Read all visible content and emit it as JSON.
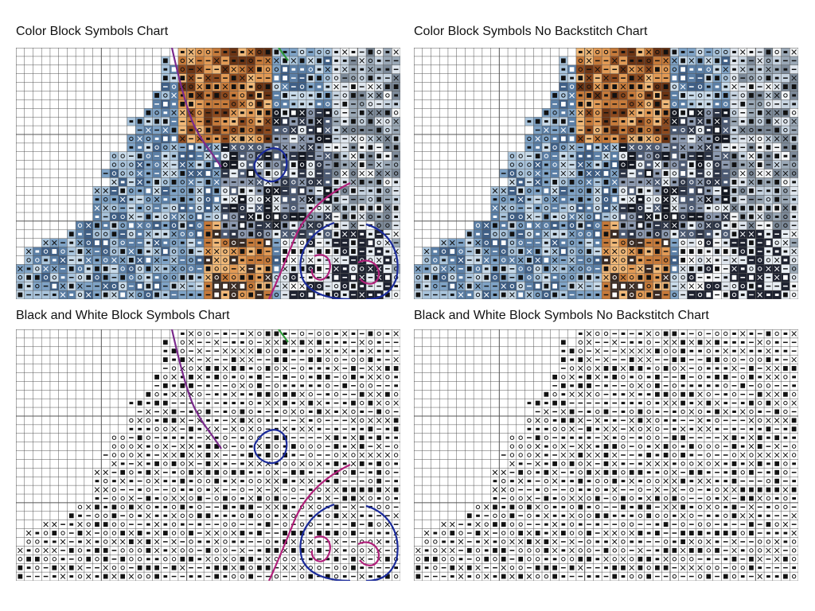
{
  "panels": [
    {
      "title": "Color Block Symbols Chart"
    },
    {
      "title": "Color Block Symbols No Backstitch Chart"
    },
    {
      "title": "Black and White Block Symbols Chart"
    },
    {
      "title": "Black and White Block Symbols No Backstitch Chart"
    }
  ]
}
